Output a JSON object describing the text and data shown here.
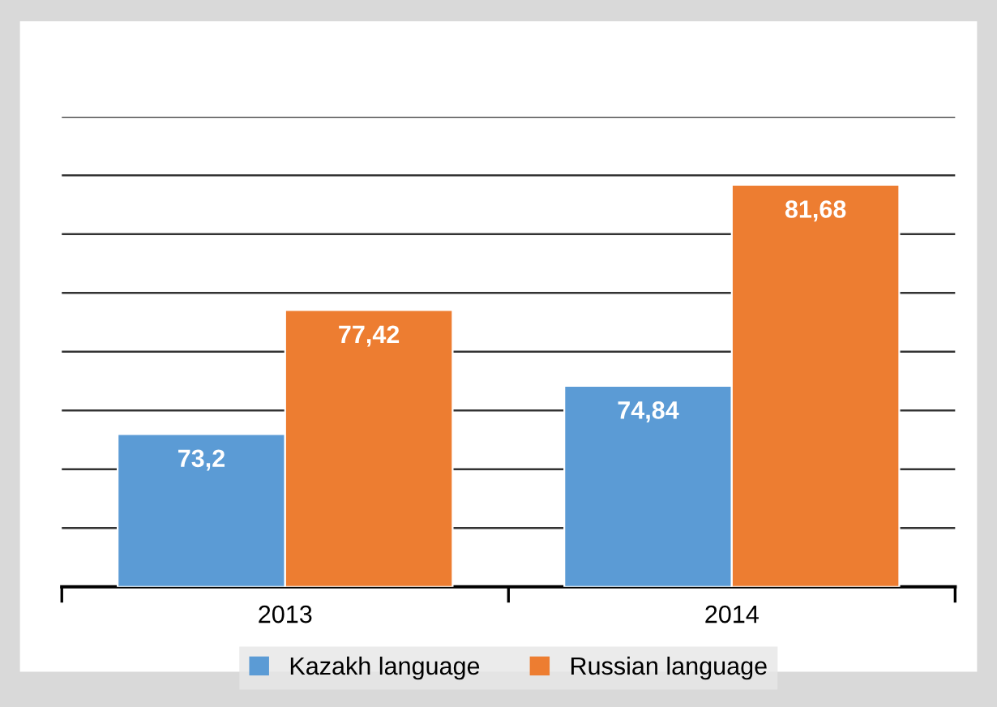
{
  "chart_data": {
    "type": "bar",
    "categories": [
      "2013",
      "2014"
    ],
    "series": [
      {
        "name": "Kazakh language",
        "color": "#5b9bd5",
        "values": [
          73.2,
          74.84
        ],
        "value_labels": [
          "73,2",
          "74,84"
        ]
      },
      {
        "name": "Russian language",
        "color": "#ed7d31",
        "values": [
          77.42,
          81.68
        ],
        "value_labels": [
          "77,42",
          "81,68"
        ]
      }
    ],
    "ylim": [
      68,
      84
    ],
    "yticks": [
      {
        "value": 68,
        "label": null
      },
      {
        "value": 70,
        "label": null
      },
      {
        "value": 72,
        "label": null
      },
      {
        "value": 74,
        "label": null
      },
      {
        "value": 76,
        "label": null
      },
      {
        "value": 78,
        "label": null
      },
      {
        "value": 80,
        "label": null
      },
      {
        "value": 82,
        "label": null
      },
      {
        "value": 84,
        "label": null
      }
    ],
    "grid": "y",
    "legend": "bottom"
  }
}
